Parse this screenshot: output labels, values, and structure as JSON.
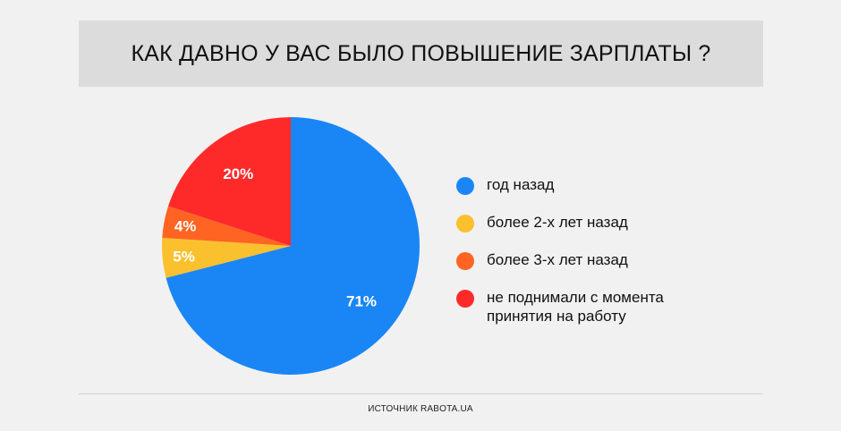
{
  "title": "КАК ДАВНО У ВАС БЫЛО ПОВЫШЕНИЕ ЗАРПЛАТЫ ?",
  "source": "ИСТОЧНИК RABOTA.UA",
  "colors": {
    "blue": "#1a86f5",
    "yellow": "#fbc02d",
    "orange": "#ff6422",
    "red": "#fe2a2a"
  },
  "chart_data": {
    "type": "pie",
    "title": "КАК ДАВНО У ВАС БЫЛО ПОВЫШЕНИЕ ЗАРПЛАТЫ ?",
    "start": "12 o'clock, clockwise",
    "legend_position": "right",
    "slices": [
      {
        "label": "год назад",
        "value": 71,
        "value_label": "71%",
        "color": "#1a86f5"
      },
      {
        "label": "более 2-х лет назад",
        "value": 5,
        "value_label": "5%",
        "color": "#fbc02d"
      },
      {
        "label": "более 3-х лет назад",
        "value": 4,
        "value_label": "4%",
        "color": "#ff6422"
      },
      {
        "label": "не поднимали с момента принятия на работу",
        "value": 20,
        "value_label": "20%",
        "color": "#fe2a2a"
      }
    ]
  }
}
